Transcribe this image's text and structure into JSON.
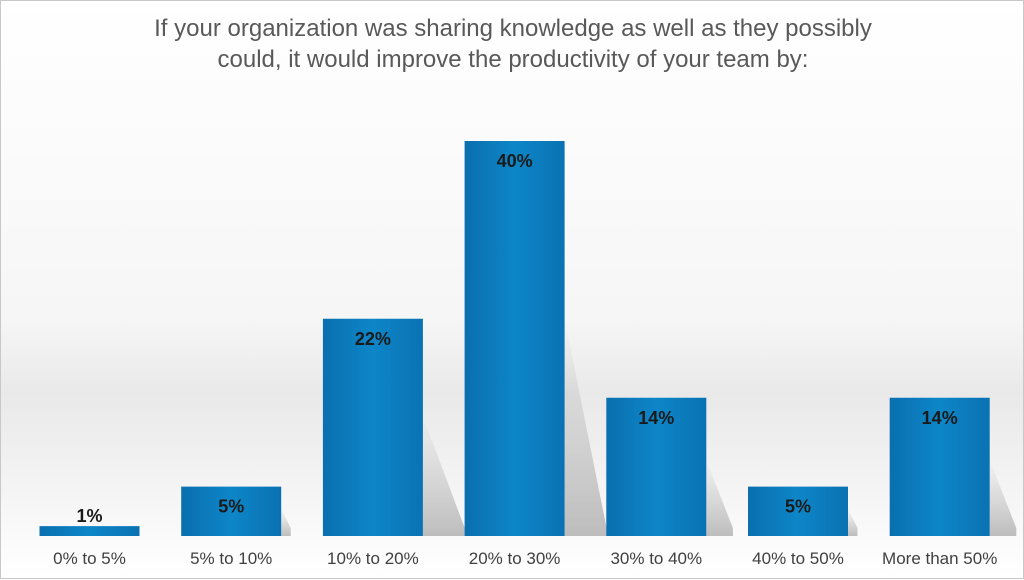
{
  "chart_data": {
    "type": "bar",
    "title_lines": [
      "If your organization was sharing knowledge as well as they possibly",
      "could, it would improve the productivity of your team by:"
    ],
    "categories": [
      "0% to 5%",
      "5% to 10%",
      "10% to 20%",
      "20% to 30%",
      "30% to 40%",
      "40% to 50%",
      "More than 50%"
    ],
    "values": [
      1,
      5,
      22,
      40,
      14,
      5,
      14
    ],
    "data_labels": [
      "1%",
      "5%",
      "22%",
      "40%",
      "14%",
      "5%",
      "14%"
    ],
    "ylim": [
      0,
      40
    ],
    "grid": false,
    "legend": "none",
    "bar_color": "#0a7fbf"
  }
}
